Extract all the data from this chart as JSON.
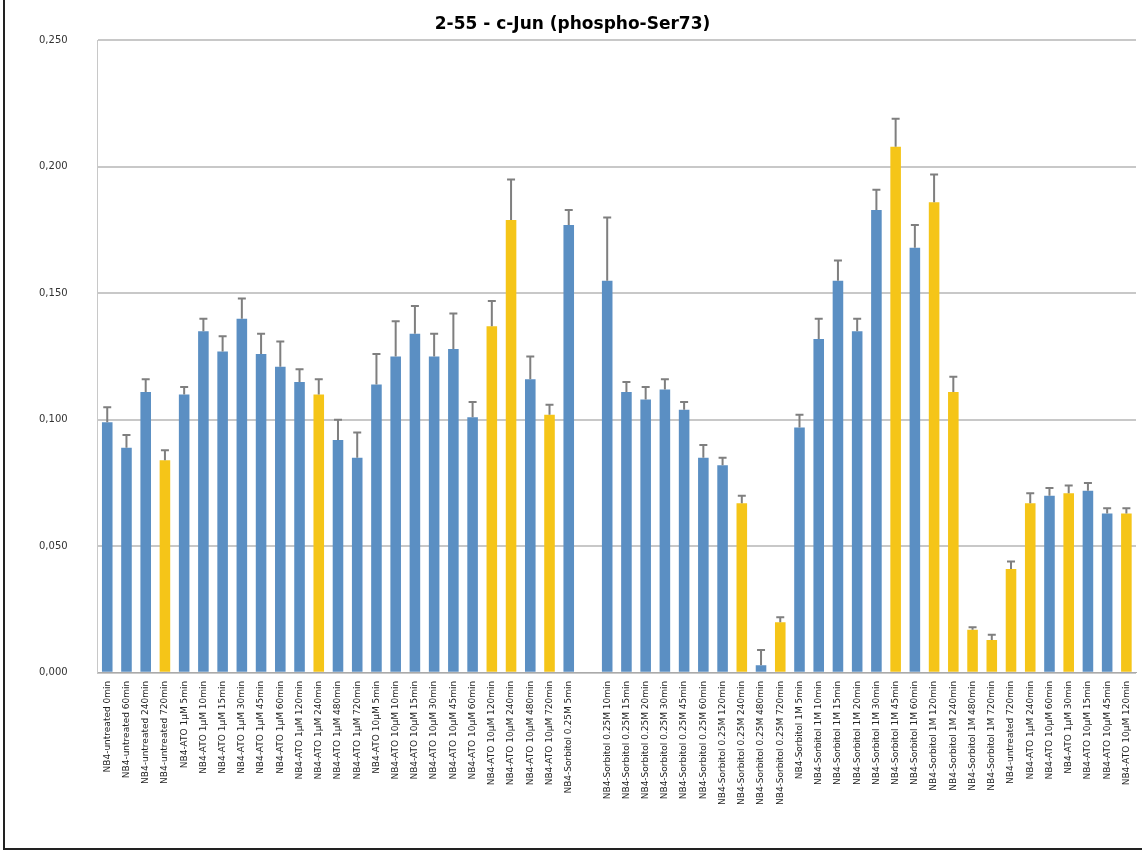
{
  "chart_data": {
    "type": "bar",
    "title": "2-55 - c-Jun (phospho-Ser73)",
    "categories": [
      "NB4-untreated 0min",
      "NB4-untreated 60min",
      "NB4-untreated 240min",
      "NB4-untreated 720min",
      "NB4-ATO 1μM 5min",
      "NB4-ATO 1μM 10min",
      "NB4-ATO 1μM 15min",
      "NB4-ATO 1μM 30min",
      "NB4-ATO 1μM 45min",
      "NB4-ATO 1μM 60min",
      "NB4-ATO 1μM 120min",
      "NB4-ATO 1μM 240min",
      "NB4-ATO 1μM 480min",
      "NB4-ATO 1μM 720min",
      "NB4-ATO 10μM 5min",
      "NB4-ATO 10μM 10min",
      "NB4-ATO 10μM 15min",
      "NB4-ATO 10μM 30min",
      "NB4-ATO 10μM 45min",
      "NB4-ATO 10μM 60min",
      "NB4-ATO 10μM 120min",
      "NB4-ATO 10μM 240min",
      "NB4-ATO 10μM 480min",
      "NB4-ATO 10μM 720min",
      "NB4-Sorbitol 0.25M 5min",
      null,
      "NB4-Sorbitol 0.25M 10min",
      "NB4-Sorbitol 0.25M 15min",
      "NB4-Sorbitol 0.25M 20min",
      "NB4-Sorbitol 0.25M 30min",
      "NB4-Sorbitol 0.25M 45min",
      "NB4-Sorbitol 0.25M 60min",
      "NB4-Sorbitol 0.25M 120min",
      "NB4-Sorbitol 0.25M 240min",
      "NB4-Sorbitol 0.25M 480min",
      "NB4-Sorbitol 0.25M 720min",
      "NB4-Sorbitol 1M 5min",
      "NB4-Sorbitol 1M 10min",
      "NB4-Sorbitol 1M 15min",
      "NB4-Sorbitol 1M 20min",
      "NB4-Sorbitol 1M 30min",
      "NB4-Sorbitol 1M 45min",
      "NB4-Sorbitol 1M 60min",
      "NB4-Sorbitol 1M 120min",
      "NB4-Sorbitol 1M 240min",
      "NB4-Sorbitol 1M 480min",
      "NB4-Sorbitol 1M 720min",
      "NB4-untreated 720min",
      "NB4-ATO 1μM 240min",
      "NB4-ATO 10μM 60min",
      "NB4-ATO 1μM 30min",
      "NB4-ATO 10μM 15min",
      "NB4-ATO 10μM 45min",
      "NB4-ATO 10μM 120min"
    ],
    "values": [
      0.099,
      0.089,
      0.111,
      0.084,
      0.11,
      0.135,
      0.127,
      0.14,
      0.126,
      0.121,
      0.115,
      0.11,
      0.092,
      0.085,
      0.114,
      0.125,
      0.134,
      0.125,
      0.128,
      0.101,
      0.137,
      0.179,
      0.116,
      0.102,
      0.177,
      null,
      0.155,
      0.111,
      0.108,
      0.112,
      0.104,
      0.085,
      0.082,
      0.067,
      0.003,
      0.02,
      0.097,
      0.132,
      0.155,
      0.135,
      0.183,
      0.208,
      0.168,
      0.186,
      0.111,
      0.017,
      0.013,
      0.041,
      0.067,
      0.07,
      0.071,
      0.072,
      0.063,
      0.063
    ],
    "errors": [
      [
        0.099,
        0.105
      ],
      [
        0.089,
        0.094
      ],
      [
        0.111,
        0.116
      ],
      [
        0.084,
        0.088
      ],
      [
        0.11,
        0.113
      ],
      [
        0.135,
        0.14
      ],
      [
        0.127,
        0.133
      ],
      [
        0.14,
        0.148
      ],
      [
        0.126,
        0.134
      ],
      [
        0.121,
        0.131
      ],
      [
        0.115,
        0.12
      ],
      [
        0.11,
        0.116
      ],
      [
        0.092,
        0.1
      ],
      [
        0.085,
        0.095
      ],
      [
        0.114,
        0.126
      ],
      [
        0.125,
        0.139
      ],
      [
        0.134,
        0.145
      ],
      [
        0.125,
        0.134
      ],
      [
        0.128,
        0.142
      ],
      [
        0.101,
        0.107
      ],
      [
        0.137,
        0.147
      ],
      [
        0.179,
        0.195
      ],
      [
        0.116,
        0.125
      ],
      [
        0.102,
        0.106
      ],
      [
        0.177,
        0.183
      ],
      null,
      [
        0.155,
        0.18
      ],
      [
        0.111,
        0.115
      ],
      [
        0.108,
        0.113
      ],
      [
        0.112,
        0.116
      ],
      [
        0.104,
        0.107
      ],
      [
        0.085,
        0.09
      ],
      [
        0.082,
        0.085
      ],
      [
        0.067,
        0.07
      ],
      [
        0.003,
        0.009
      ],
      [
        0.02,
        0.022
      ],
      [
        0.097,
        0.102
      ],
      [
        0.132,
        0.14
      ],
      [
        0.155,
        0.163
      ],
      [
        0.135,
        0.14
      ],
      [
        0.183,
        0.191
      ],
      [
        0.208,
        0.219
      ],
      [
        0.168,
        0.177
      ],
      [
        0.186,
        0.197
      ],
      [
        0.111,
        0.117
      ],
      [
        0.017,
        0.018
      ],
      [
        0.013,
        0.015
      ],
      [
        0.041,
        0.044
      ],
      [
        0.067,
        0.071
      ],
      [
        0.07,
        0.073
      ],
      [
        0.071,
        0.074
      ],
      [
        0.072,
        0.075
      ],
      [
        0.063,
        0.065
      ],
      [
        0.063,
        0.065
      ]
    ],
    "colors": [
      "#5b8fc3",
      "#5b8fc3",
      "#5b8fc3",
      "#f5c518",
      "#5b8fc3",
      "#5b8fc3",
      "#5b8fc3",
      "#5b8fc3",
      "#5b8fc3",
      "#5b8fc3",
      "#5b8fc3",
      "#f5c518",
      "#5b8fc3",
      "#5b8fc3",
      "#5b8fc3",
      "#5b8fc3",
      "#5b8fc3",
      "#5b8fc3",
      "#5b8fc3",
      "#5b8fc3",
      "#f5c518",
      "#f5c518",
      "#5b8fc3",
      "#f5c518",
      "#5b8fc3",
      "#5b8fc3",
      "#5b8fc3",
      "#5b8fc3",
      "#5b8fc3",
      "#5b8fc3",
      "#5b8fc3",
      "#5b8fc3",
      "#5b8fc3",
      "#f5c518",
      "#5b8fc3",
      "#f5c518",
      "#5b8fc3",
      "#5b8fc3",
      "#5b8fc3",
      "#5b8fc3",
      "#5b8fc3",
      "#f5c518",
      "#5b8fc3",
      "#f5c518",
      "#f5c518",
      "#f5c518",
      "#f5c518",
      "#f5c518",
      "#f5c518",
      "#5b8fc3",
      "#f5c518",
      "#5b8fc3",
      "#5b8fc3",
      "#f5c518"
    ],
    "ylim": [
      0,
      0.25
    ],
    "yticks": [
      {
        "value": 0,
        "label": "0,000"
      },
      {
        "value": 0.05,
        "label": "0,050"
      },
      {
        "value": 0.1,
        "label": "0,100"
      },
      {
        "value": 0.15,
        "label": "0,150"
      },
      {
        "value": 0.2,
        "label": "0,200"
      },
      {
        "value": 0.25,
        "label": "0,250"
      }
    ],
    "grid": "y",
    "legend": false
  }
}
